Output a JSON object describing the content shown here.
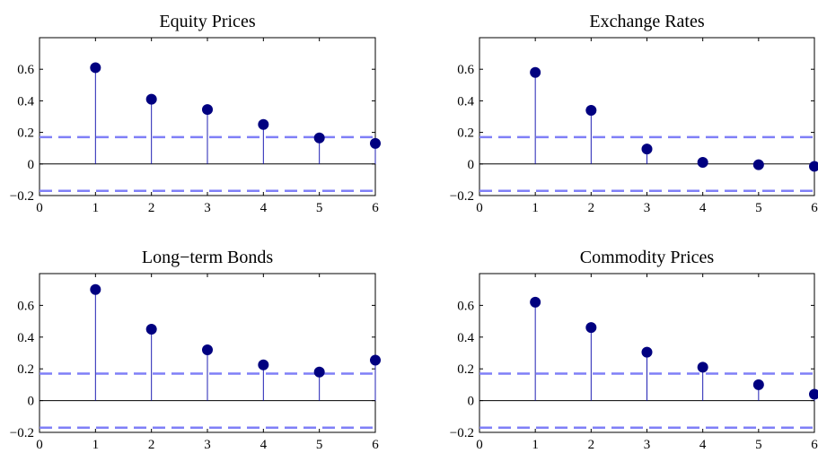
{
  "chart_data": [
    {
      "type": "stem",
      "title": "Equity Prices",
      "x": [
        1,
        2,
        3,
        4,
        5,
        6
      ],
      "values": [
        0.61,
        0.41,
        0.345,
        0.25,
        0.165,
        0.13
      ],
      "conf_bounds": [
        0.17,
        -0.17
      ],
      "xlim": [
        0,
        6
      ],
      "ylim": [
        -0.2,
        0.8
      ],
      "xticks": [
        0,
        1,
        2,
        3,
        4,
        5,
        6
      ],
      "yticks": [
        -0.2,
        0,
        0.2,
        0.4,
        0.6
      ],
      "xlabel": "",
      "ylabel": ""
    },
    {
      "type": "stem",
      "title": "Exchange Rates",
      "x": [
        1,
        2,
        3,
        4,
        5,
        6
      ],
      "values": [
        0.58,
        0.34,
        0.095,
        0.01,
        -0.005,
        -0.015
      ],
      "conf_bounds": [
        0.17,
        -0.17
      ],
      "xlim": [
        0,
        6
      ],
      "ylim": [
        -0.2,
        0.8
      ],
      "xticks": [
        0,
        1,
        2,
        3,
        4,
        5,
        6
      ],
      "yticks": [
        -0.2,
        0,
        0.2,
        0.4,
        0.6
      ],
      "xlabel": "",
      "ylabel": ""
    },
    {
      "type": "stem",
      "title": "Long−term Bonds",
      "x": [
        1,
        2,
        3,
        4,
        5,
        6
      ],
      "values": [
        0.7,
        0.45,
        0.32,
        0.225,
        0.18,
        0.255
      ],
      "conf_bounds": [
        0.17,
        -0.17
      ],
      "xlim": [
        0,
        6
      ],
      "ylim": [
        -0.2,
        0.8
      ],
      "xticks": [
        0,
        1,
        2,
        3,
        4,
        5,
        6
      ],
      "yticks": [
        -0.2,
        0,
        0.2,
        0.4,
        0.6
      ],
      "xlabel": "",
      "ylabel": ""
    },
    {
      "type": "stem",
      "title": "Commodity Prices",
      "x": [
        1,
        2,
        3,
        4,
        5,
        6
      ],
      "values": [
        0.62,
        0.46,
        0.305,
        0.21,
        0.1,
        0.04
      ],
      "conf_bounds": [
        0.17,
        -0.17
      ],
      "xlim": [
        0,
        6
      ],
      "ylim": [
        -0.2,
        0.8
      ],
      "xticks": [
        0,
        1,
        2,
        3,
        4,
        5,
        6
      ],
      "yticks": [
        -0.2,
        0,
        0.2,
        0.4,
        0.6
      ],
      "xlabel": "",
      "ylabel": ""
    }
  ],
  "colors": {
    "marker": "#000080",
    "stem": "#1f1fb4",
    "bound": "#7f7ff7",
    "axis": "#000000",
    "background": "#ffffff"
  }
}
